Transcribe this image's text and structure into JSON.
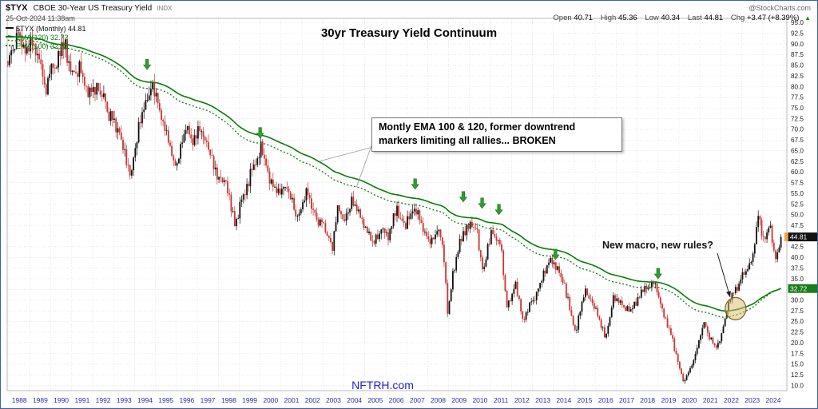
{
  "header": {
    "symbol": "$TYX",
    "symbol_desc": "CBOE 30-Year US Treasury Yield",
    "exchange": "INDX",
    "watermark": "@StockCharts.com",
    "datetime": "25-Oct-2024 11:38am",
    "quote": [
      {
        "k": "Open",
        "v": "40.71"
      },
      {
        "k": "High",
        "v": "45.36"
      },
      {
        "k": "Low",
        "v": "40.34"
      },
      {
        "k": "Last",
        "v": "44.81"
      },
      {
        "k": "Chg",
        "v": "+3.47 (+8.39%)"
      }
    ],
    "quote_arrow": "▲",
    "legend": [
      {
        "label": "$TYX (Monthly) 44.81"
      },
      {
        "label": "EMA(120) 32.72"
      },
      {
        "label": "EMA(100) 32.75"
      }
    ]
  },
  "annotations": {
    "title": "30yr Treasury Yield Continuum",
    "callout_line1": "Montly EMA 100 & 120, former downtrend",
    "callout_line2": "markers limiting all rallies... BROKEN",
    "macro_note": "New macro, new rules?",
    "site": "NFTRH.com",
    "last_price_label": "44.81",
    "ema_price_label": "32.72"
  },
  "chart_data": {
    "type": "candlestick",
    "interval": "monthly",
    "title": "30yr Treasury Yield Continuum",
    "x_start": 1987.95,
    "x_end": 2024.87,
    "y_axis": {
      "min": 10,
      "max": 95,
      "step": 2.5
    },
    "x_ticks": [
      1988,
      1989,
      1990,
      1991,
      1992,
      1993,
      1994,
      1995,
      1996,
      1997,
      1998,
      1999,
      2000,
      2001,
      2002,
      2003,
      2004,
      2005,
      2006,
      2007,
      2008,
      2009,
      2010,
      2011,
      2012,
      2013,
      2014,
      2015,
      2016,
      2017,
      2018,
      2019,
      2020,
      2021,
      2022,
      2023,
      2024
    ],
    "keypoints": [
      [
        1987.95,
        86
      ],
      [
        1988.2,
        89
      ],
      [
        1988.45,
        92
      ],
      [
        1988.7,
        88
      ],
      [
        1989.1,
        91
      ],
      [
        1989.4,
        88
      ],
      [
        1989.75,
        79.5
      ],
      [
        1990.0,
        83
      ],
      [
        1990.3,
        86
      ],
      [
        1990.65,
        90
      ],
      [
        1991.0,
        82.5
      ],
      [
        1991.4,
        84.5
      ],
      [
        1991.9,
        78
      ],
      [
        1992.2,
        79.5
      ],
      [
        1992.6,
        76
      ],
      [
        1993.0,
        71
      ],
      [
        1993.4,
        68
      ],
      [
        1993.8,
        58.5
      ],
      [
        1994.2,
        71
      ],
      [
        1994.5,
        75
      ],
      [
        1994.85,
        81.5
      ],
      [
        1995.3,
        73
      ],
      [
        1995.7,
        66
      ],
      [
        1996.0,
        60.5
      ],
      [
        1996.4,
        70
      ],
      [
        1996.8,
        67
      ],
      [
        1997.1,
        70.5
      ],
      [
        1997.5,
        66
      ],
      [
        1997.9,
        60
      ],
      [
        1998.4,
        57
      ],
      [
        1998.8,
        47.5
      ],
      [
        1999.1,
        53
      ],
      [
        1999.5,
        59
      ],
      [
        1999.9,
        64
      ],
      [
        2000.05,
        66.5
      ],
      [
        2000.4,
        59
      ],
      [
        2000.9,
        55
      ],
      [
        2001.3,
        57
      ],
      [
        2001.75,
        49
      ],
      [
        2002.2,
        56
      ],
      [
        2002.7,
        49
      ],
      [
        2003.0,
        48
      ],
      [
        2003.45,
        42
      ],
      [
        2003.7,
        52
      ],
      [
        2004.0,
        48
      ],
      [
        2004.4,
        54
      ],
      [
        2004.9,
        48
      ],
      [
        2005.4,
        43
      ],
      [
        2005.8,
        47
      ],
      [
        2006.1,
        45
      ],
      [
        2006.5,
        52
      ],
      [
        2006.9,
        47
      ],
      [
        2007.4,
        52
      ],
      [
        2007.8,
        47
      ],
      [
        2008.1,
        43
      ],
      [
        2008.5,
        47
      ],
      [
        2008.75,
        42
      ],
      [
        2008.95,
        26.5
      ],
      [
        2009.2,
        36
      ],
      [
        2009.5,
        43
      ],
      [
        2009.9,
        47
      ],
      [
        2010.3,
        47.5
      ],
      [
        2010.65,
        36.5
      ],
      [
        2010.95,
        44
      ],
      [
        2011.1,
        46
      ],
      [
        2011.5,
        43
      ],
      [
        2011.75,
        28.5
      ],
      [
        2012.2,
        33.5
      ],
      [
        2012.55,
        24.8
      ],
      [
        2012.9,
        29
      ],
      [
        2013.2,
        31.5
      ],
      [
        2013.7,
        38
      ],
      [
        2013.95,
        39.5
      ],
      [
        2014.5,
        34
      ],
      [
        2015.05,
        22.5
      ],
      [
        2015.5,
        32
      ],
      [
        2015.9,
        29.5
      ],
      [
        2016.5,
        21.2
      ],
      [
        2016.9,
        31
      ],
      [
        2017.3,
        29
      ],
      [
        2017.7,
        27
      ],
      [
        2018.1,
        31
      ],
      [
        2018.8,
        34.5
      ],
      [
        2019.3,
        26
      ],
      [
        2019.7,
        20.5
      ],
      [
        2020.2,
        11
      ],
      [
        2020.6,
        14.5
      ],
      [
        2021.2,
        24.5
      ],
      [
        2021.7,
        18.8
      ],
      [
        2022.0,
        21
      ],
      [
        2022.4,
        30
      ],
      [
        2022.8,
        33
      ],
      [
        2023.1,
        36.5
      ],
      [
        2023.5,
        39
      ],
      [
        2023.8,
        50.5
      ],
      [
        2024.05,
        43.5
      ],
      [
        2024.35,
        47.5
      ],
      [
        2024.6,
        39.5
      ],
      [
        2024.87,
        44.81
      ]
    ],
    "last_close": 44.81,
    "ema": [
      {
        "period": 120,
        "final": 32.72,
        "style": "solid"
      },
      {
        "period": 100,
        "final": 32.75,
        "style": "dotted"
      }
    ],
    "arrows": [
      {
        "year": 1994.6,
        "value": 84
      },
      {
        "year": 2000.0,
        "value": 68
      },
      {
        "year": 2007.4,
        "value": 56
      },
      {
        "year": 2009.7,
        "value": 53
      },
      {
        "year": 2010.6,
        "value": 51.5
      },
      {
        "year": 2011.4,
        "value": 50
      },
      {
        "year": 2014.1,
        "value": 39.5
      },
      {
        "year": 2019.0,
        "value": 35
      }
    ],
    "highlight": {
      "year": 2022.7,
      "value": 28
    },
    "colors": {
      "up": "#111111",
      "down": "#cc3333",
      "ema": "#0a7a0a",
      "arrow": "#2f9e2f",
      "arrow_stroke": "#1c6b1c",
      "highlight_fill": "#debb6a",
      "highlight_stroke": "#7a6327",
      "grid": "#d9d9d9",
      "axis_text": "#222222",
      "year_text": "#2b2bb0",
      "last_price_bg": "#111111",
      "ema_label_bg": "#1c7c1c"
    }
  }
}
